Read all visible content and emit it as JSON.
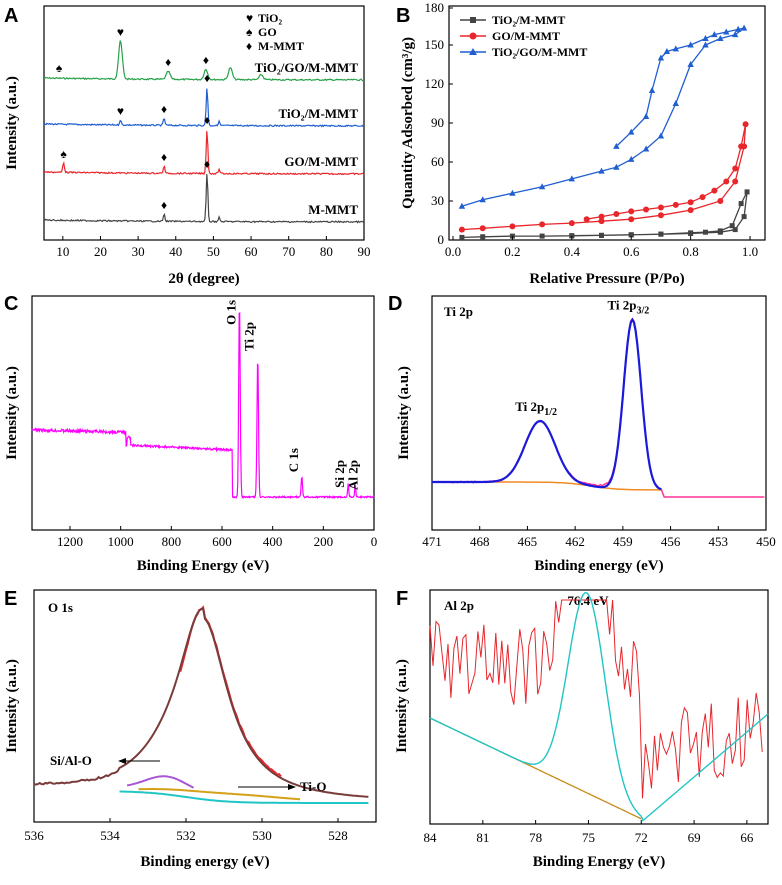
{
  "chart_data": [
    {
      "panel": "A",
      "type": "line",
      "xlabel": "2θ (degree)",
      "ylabel": "Intensity (a.u.)",
      "xlim": [
        5,
        90
      ],
      "xticks": [
        "10",
        "20",
        "30",
        "40",
        "50",
        "60",
        "70",
        "80",
        "90"
      ],
      "legend": [
        {
          "symbol": "♥",
          "label": "TiO₂"
        },
        {
          "symbol": "♠",
          "label": "GO"
        },
        {
          "symbol": "♦",
          "label": "M-MMT"
        }
      ],
      "series": [
        {
          "name": "TiO₂/GO/M-MMT",
          "color": "#27a149",
          "peaks": [
            {
              "x": 25.3,
              "h": 38,
              "marker": "♥"
            },
            {
              "x": 38.0,
              "h": 8,
              "marker": "♦"
            },
            {
              "x": 48.0,
              "h": 10,
              "marker": "♦"
            },
            {
              "x": 54.5,
              "h": 12
            },
            {
              "x": 62.7,
              "h": 5
            }
          ],
          "marker_spade_x": 9.0
        },
        {
          "name": "TiO₂/M-MMT",
          "color": "#1f5fd1",
          "peaks": [
            {
              "x": 25.3,
              "h": 5,
              "marker": "♥"
            },
            {
              "x": 36.9,
              "h": 7,
              "marker": "♦"
            },
            {
              "x": 48.3,
              "h": 38,
              "marker": "♦"
            },
            {
              "x": 51.5,
              "h": 4
            }
          ]
        },
        {
          "name": "GO/M-MMT",
          "color": "#e8262b",
          "peaks": [
            {
              "x": 10.2,
              "h": 10,
              "marker": "♠"
            },
            {
              "x": 36.9,
              "h": 7,
              "marker": "♦"
            },
            {
              "x": 48.3,
              "h": 44,
              "marker": "♦"
            },
            {
              "x": 51.5,
              "h": 4
            }
          ]
        },
        {
          "name": "M-MMT",
          "color": "#444444",
          "peaks": [
            {
              "x": 36.9,
              "h": 7,
              "marker": "♦"
            },
            {
              "x": 48.3,
              "h": 48,
              "marker": "♦"
            },
            {
              "x": 51.5,
              "h": 4
            }
          ]
        }
      ]
    },
    {
      "panel": "B",
      "type": "line",
      "xlabel": "Relative Pressure (P/Po)",
      "ylabel": "Quantity Adsorbed (cm³/g)",
      "xlim": [
        0,
        1.0
      ],
      "ylim": [
        0,
        180
      ],
      "xticks": [
        "0.0",
        "0.2",
        "0.4",
        "0.6",
        "0.8",
        "1.0"
      ],
      "yticks": [
        "0",
        "30",
        "60",
        "90",
        "120",
        "150",
        "180"
      ],
      "legend": [
        "TiO₂/M-MMT",
        "GO/M-MMT",
        "TiO₂/GO/M-MMT"
      ],
      "series": [
        {
          "name": "TiO₂/M-MMT",
          "color": "#444444",
          "marker": "square",
          "x": [
            0.03,
            0.1,
            0.2,
            0.3,
            0.4,
            0.5,
            0.6,
            0.7,
            0.8,
            0.9,
            0.95,
            0.98,
            0.99,
            0.97,
            0.94,
            0.9,
            0.85,
            0.8,
            0.7,
            0.6,
            0.5,
            0.4
          ],
          "y": [
            2,
            2.5,
            3,
            3,
            3.2,
            3.5,
            4,
            4.5,
            5,
            6,
            8,
            18,
            37,
            28,
            11,
            7,
            6,
            5.5,
            4.5,
            4,
            3.6,
            3.3
          ]
        },
        {
          "name": "GO/M-MMT",
          "color": "#e8262b",
          "marker": "circle",
          "x": [
            0.03,
            0.1,
            0.2,
            0.3,
            0.4,
            0.5,
            0.6,
            0.7,
            0.8,
            0.9,
            0.95,
            0.98,
            0.985,
            0.97,
            0.95,
            0.92,
            0.88,
            0.84,
            0.8,
            0.75,
            0.7,
            0.65,
            0.6,
            0.55,
            0.5,
            0.45
          ],
          "y": [
            8,
            9,
            10.5,
            12,
            13,
            14.5,
            16,
            19,
            23,
            30,
            45,
            72,
            89,
            72,
            55,
            45,
            38,
            33,
            29,
            27,
            25,
            23.5,
            22,
            20,
            18,
            16
          ]
        },
        {
          "name": "TiO₂/GO/M-MMT",
          "color": "#1f5fd1",
          "marker": "triangle",
          "x": [
            0.03,
            0.1,
            0.2,
            0.3,
            0.4,
            0.5,
            0.55,
            0.6,
            0.65,
            0.7,
            0.75,
            0.8,
            0.85,
            0.9,
            0.95,
            0.98,
            0.96,
            0.92,
            0.88,
            0.85,
            0.8,
            0.75,
            0.72,
            0.7,
            0.67,
            0.65,
            0.6,
            0.55
          ],
          "y": [
            26,
            31,
            36,
            41,
            47,
            53,
            56,
            62,
            70,
            80,
            105,
            135,
            150,
            155,
            158,
            163,
            162,
            160,
            158,
            155,
            150,
            147,
            145,
            140,
            115,
            95,
            83,
            72
          ]
        }
      ]
    },
    {
      "panel": "C",
      "type": "line",
      "xlabel": "Binding Energy (eV)",
      "ylabel": "Intensity (a.u.)",
      "xlim": [
        1350,
        0
      ],
      "xticks": [
        "1200",
        "1000",
        "800",
        "600",
        "400",
        "200",
        "0"
      ],
      "color": "#ff00ff",
      "peak_labels": [
        {
          "label": "O 1s",
          "x": 531
        },
        {
          "label": "Ti 2p",
          "x": 459
        },
        {
          "label": "C 1s",
          "x": 285
        },
        {
          "label": "Si 2p",
          "x": 102
        },
        {
          "label": "Al 2p",
          "x": 74
        }
      ]
    },
    {
      "panel": "D",
      "type": "line",
      "title": "Ti 2p",
      "xlabel": "Binding energy (eV)",
      "ylabel": "Intensity (a.u.)",
      "xlim": [
        471,
        450
      ],
      "xticks": [
        "471",
        "468",
        "465",
        "462",
        "459",
        "456",
        "453",
        "450"
      ],
      "peaks": [
        {
          "label_main": "Ti 2p",
          "label_sub": "1/2",
          "x": 464.2,
          "rel": 0.36
        },
        {
          "label_main": "Ti 2p",
          "label_sub": "3/2",
          "x": 458.4,
          "rel": 1.0
        }
      ],
      "series": [
        {
          "name": "raw",
          "color": "#ff3399"
        },
        {
          "name": "fit",
          "color": "#1a1adb"
        },
        {
          "name": "background",
          "color": "#f08a24"
        }
      ]
    },
    {
      "panel": "E",
      "type": "line",
      "title": "O 1s",
      "xlabel": "Binding energy (eV)",
      "ylabel": "Intensity (a.u.)",
      "xlim": [
        536,
        527
      ],
      "xticks": [
        "536",
        "534",
        "532",
        "530",
        "528"
      ],
      "annotations": [
        {
          "label": "Si/Al-O",
          "x": 532.4
        },
        {
          "label": "Ti-O",
          "x": 530.3
        }
      ],
      "series": [
        {
          "name": "raw",
          "color": "#e8262b"
        },
        {
          "name": "envelope",
          "color": "#7a3b3b"
        },
        {
          "name": "Si/Al-O",
          "color": "#a855d6"
        },
        {
          "name": "Ti-O",
          "color": "#d4a017"
        },
        {
          "name": "background",
          "color": "#20c5c5"
        }
      ]
    },
    {
      "panel": "F",
      "type": "line",
      "title": "Al 2p",
      "peak_label": "76.4 eV",
      "xlabel": "Binding Energy (eV)",
      "ylabel": "Intensity (a.u.)",
      "xlim": [
        84,
        64.8
      ],
      "xticks": [
        "84",
        "81",
        "78",
        "75",
        "72",
        "69",
        "66"
      ],
      "series": [
        {
          "name": "raw",
          "color": "#e8262b"
        },
        {
          "name": "fit",
          "color": "#20c5c5"
        },
        {
          "name": "background",
          "color": "#c98a1a"
        }
      ]
    }
  ],
  "panel_letters": [
    "A",
    "B",
    "C",
    "D",
    "E",
    "F"
  ]
}
